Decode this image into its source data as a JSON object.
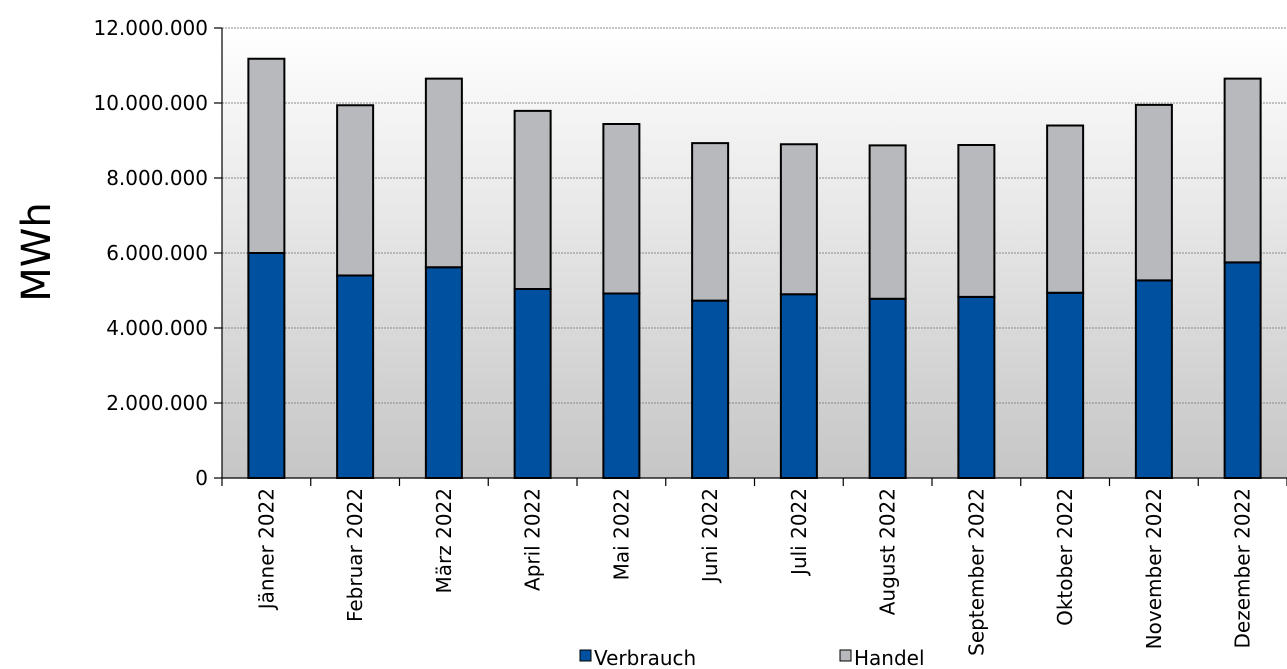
{
  "chart_data": {
    "type": "bar",
    "stacked": true,
    "categories": [
      "Jänner 2022",
      "Februar 2022",
      "März 2022",
      "April 2022",
      "Mai 2022",
      "Juni 2022",
      "Juli 2022",
      "August 2022",
      "September 2022",
      "Oktober 2022",
      "November 2022",
      "Dezember 2022"
    ],
    "series": [
      {
        "name": "Verbrauch",
        "color": "#0050A0",
        "values": [
          6000000,
          5400000,
          5620000,
          5040000,
          4920000,
          4730000,
          4900000,
          4780000,
          4830000,
          4940000,
          5270000,
          5750000
        ]
      },
      {
        "name": "Handel",
        "color": "#B8B9BD",
        "values": [
          5180000,
          4540000,
          5030000,
          4750000,
          4520000,
          4200000,
          4000000,
          4090000,
          4050000,
          4460000,
          4680000,
          4900000
        ]
      }
    ],
    "title": "",
    "xlabel": "",
    "ylabel": "MWh",
    "ylim": [
      0,
      12000000
    ],
    "yticks": [
      0,
      2000000,
      4000000,
      6000000,
      8000000,
      10000000,
      12000000
    ],
    "ytick_labels": [
      "0",
      "2.000.000",
      "4.000.000",
      "6.000.000",
      "8.000.000",
      "10.000.000",
      "12.000.000"
    ],
    "grid": true,
    "legend_position": "bottom"
  }
}
